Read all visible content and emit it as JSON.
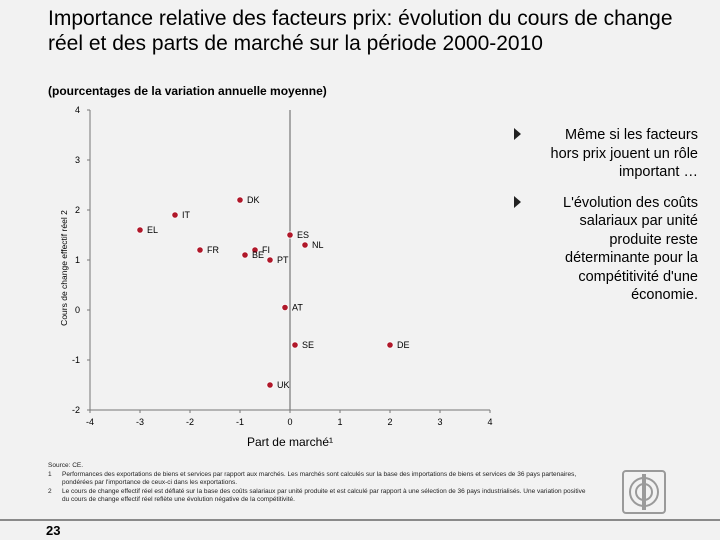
{
  "slide": {
    "title": "Importance relative des facteurs prix: évolution du cours de change réel et des parts de marché sur la période 2000-2010",
    "subtitle": "(pourcentages de la variation annuelle moyenne)",
    "page_number": "23",
    "bullets": [
      "Même si les facteurs hors prix jouent un rôle important …",
      "L'évolution des coûts salariaux par unité produite reste déterminante pour la compétitivité d'une économie."
    ],
    "notes": {
      "source": "Source: CE.",
      "items": [
        {
          "num": "1",
          "text": "Performances des exportations de biens et services par rapport aux marchés. Les marchés sont calculés sur la base des importations de biens et services de 36 pays partenaires, pondérées par l'importance de ceux-ci dans les exportations."
        },
        {
          "num": "2",
          "text": "Le cours de change effectif réel est déflaté sur la base des coûts salariaux par unité produite et est calculé par rapport à une sélection de 36 pays industrialisés. Une variation positive du cours de change effectif réel reflète une évolution négative de la compétitivité."
        }
      ]
    },
    "colors": {
      "marker": "#b0182a",
      "axis": "#777777",
      "background": "#f2f2f2",
      "logo": "#9a9a9a"
    },
    "logo_icon": "bank-logo-icon"
  },
  "chart_data": {
    "type": "scatter",
    "xlabel": "Part de marché¹",
    "ylabel": "Cours de change effectif réel 2",
    "xlim": [
      -4,
      4
    ],
    "ylim": [
      -2,
      4
    ],
    "xticks": [
      "-4",
      "-3",
      "-2",
      "-1",
      "0",
      "1",
      "2",
      "3",
      "4"
    ],
    "yticks": [
      "4",
      "3",
      "2",
      "1",
      "0",
      "-1",
      "-2"
    ],
    "points": [
      {
        "label": "DK",
        "x": -1.0,
        "y": 2.2
      },
      {
        "label": "IT",
        "x": -2.3,
        "y": 1.9
      },
      {
        "label": "EL",
        "x": -3.0,
        "y": 1.6
      },
      {
        "label": "FR",
        "x": -1.8,
        "y": 1.2
      },
      {
        "label": "FI",
        "x": -0.7,
        "y": 1.2
      },
      {
        "label": "BE",
        "x": -0.9,
        "y": 1.1
      },
      {
        "label": "ES",
        "x": 0.0,
        "y": 1.5
      },
      {
        "label": "NL",
        "x": 0.3,
        "y": 1.3
      },
      {
        "label": "PT",
        "x": -0.4,
        "y": 1.0
      },
      {
        "label": "AT",
        "x": -0.1,
        "y": 0.05
      },
      {
        "label": "SE",
        "x": 0.1,
        "y": -0.7
      },
      {
        "label": "DE",
        "x": 2.0,
        "y": -0.7
      },
      {
        "label": "UK",
        "x": -0.4,
        "y": -1.5
      }
    ]
  }
}
